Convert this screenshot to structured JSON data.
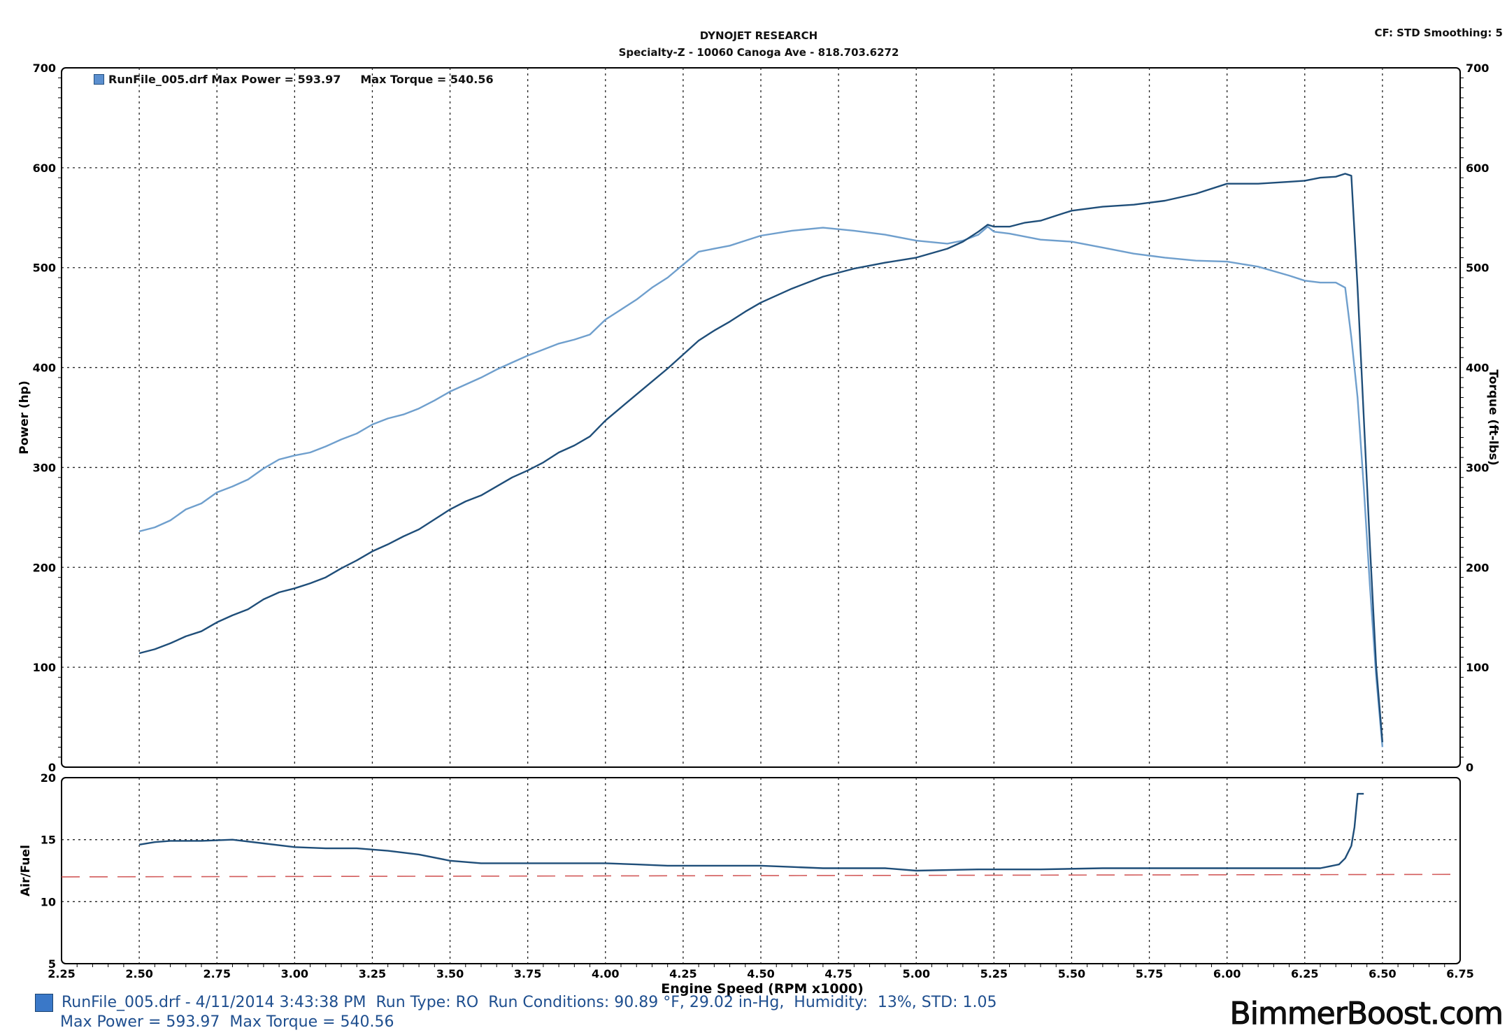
{
  "header": {
    "company": "DYNOJET RESEARCH",
    "shop": "Specialty-Z - 10060 Canoga Ave - 818.703.6272",
    "corner": "CF: STD  Smoothing: 5"
  },
  "legend": {
    "run": "RunFile_005.drf Max Power = 593.97",
    "torque": "Max Torque = 540.56"
  },
  "footer": {
    "line1": "RunFile_005.drf - 4/11/2014 3:43:38 PM  Run Type: RO  Run Conditions: 90.89 °F, 29.02 in-Hg,  Humidity:  13%, STD: 1.05",
    "line2": "Max Power = 593.97  Max Torque = 540.56"
  },
  "watermark": "BimmerBoost.com",
  "colors": {
    "power": "#1f4e79",
    "torque": "#6f9fcd",
    "afr": "#1f4e79",
    "afr_target": "#d25a5a",
    "grid": "#222222"
  },
  "chart_data": [
    {
      "type": "line",
      "xlabel": "Engine Speed (RPM x1000)",
      "ylabel": "Power (hp)",
      "y2label": "Torque (ft-lbs)",
      "xlim": [
        2.25,
        6.75
      ],
      "ylim": [
        0,
        700
      ],
      "y2lim": [
        0,
        700
      ],
      "x_ticks": [
        "2.25",
        "2.50",
        "2.75",
        "3.00",
        "3.25",
        "3.50",
        "3.75",
        "4.00",
        "4.25",
        "4.50",
        "4.75",
        "5.00",
        "5.25",
        "5.50",
        "5.75",
        "6.00",
        "6.25",
        "6.50",
        "6.75"
      ],
      "y_ticks": [
        "0",
        "100",
        "200",
        "300",
        "400",
        "500",
        "600",
        "700"
      ],
      "grid": true,
      "series": [
        {
          "name": "Power",
          "axis": "left",
          "x": [
            2.5,
            2.55,
            2.6,
            2.65,
            2.7,
            2.75,
            2.8,
            2.85,
            2.9,
            2.95,
            3.0,
            3.05,
            3.1,
            3.15,
            3.2,
            3.25,
            3.3,
            3.35,
            3.4,
            3.45,
            3.5,
            3.55,
            3.6,
            3.65,
            3.7,
            3.75,
            3.8,
            3.85,
            3.9,
            3.95,
            4.0,
            4.05,
            4.1,
            4.15,
            4.2,
            4.25,
            4.3,
            4.35,
            4.4,
            4.45,
            4.5,
            4.6,
            4.7,
            4.8,
            4.9,
            5.0,
            5.1,
            5.15,
            5.2,
            5.23,
            5.25,
            5.3,
            5.35,
            5.4,
            5.45,
            5.5,
            5.6,
            5.7,
            5.8,
            5.9,
            6.0,
            6.1,
            6.2,
            6.25,
            6.3,
            6.35,
            6.38,
            6.4,
            6.42,
            6.44,
            6.46,
            6.48,
            6.5
          ],
          "y": [
            114,
            118,
            124,
            131,
            136,
            145,
            152,
            158,
            168,
            175,
            179,
            184,
            190,
            199,
            207,
            216,
            223,
            231,
            238,
            248,
            258,
            266,
            272,
            281,
            290,
            297,
            305,
            315,
            322,
            331,
            347,
            360,
            373,
            386,
            399,
            413,
            427,
            437,
            446,
            456,
            465,
            479,
            491,
            499,
            505,
            510,
            519,
            526,
            536,
            543,
            541,
            541,
            545,
            547,
            552,
            557,
            561,
            563,
            567,
            574,
            584,
            584,
            586,
            587,
            590,
            591,
            594,
            592,
            480,
            350,
            220,
            100,
            25
          ]
        },
        {
          "name": "Torque",
          "axis": "right",
          "x": [
            2.5,
            2.55,
            2.6,
            2.65,
            2.7,
            2.75,
            2.8,
            2.85,
            2.9,
            2.95,
            3.0,
            3.05,
            3.1,
            3.15,
            3.2,
            3.25,
            3.3,
            3.35,
            3.4,
            3.45,
            3.5,
            3.55,
            3.6,
            3.65,
            3.7,
            3.75,
            3.8,
            3.85,
            3.9,
            3.95,
            4.0,
            4.05,
            4.1,
            4.15,
            4.2,
            4.25,
            4.3,
            4.35,
            4.4,
            4.45,
            4.5,
            4.6,
            4.7,
            4.8,
            4.9,
            5.0,
            5.1,
            5.15,
            5.2,
            5.23,
            5.25,
            5.3,
            5.4,
            5.5,
            5.6,
            5.7,
            5.8,
            5.9,
            6.0,
            6.1,
            6.2,
            6.25,
            6.3,
            6.35,
            6.38,
            6.4,
            6.42,
            6.44,
            6.46,
            6.48,
            6.5
          ],
          "y": [
            236,
            240,
            247,
            258,
            264,
            275,
            281,
            288,
            299,
            308,
            312,
            315,
            321,
            328,
            334,
            343,
            349,
            353,
            359,
            367,
            376,
            383,
            390,
            398,
            405,
            412,
            418,
            424,
            428,
            433,
            448,
            458,
            468,
            480,
            490,
            503,
            516,
            519,
            522,
            527,
            532,
            537,
            540,
            537,
            533,
            527,
            524,
            527,
            533,
            541,
            536,
            534,
            528,
            526,
            520,
            514,
            510,
            507,
            506,
            501,
            492,
            487,
            485,
            485,
            480,
            430,
            370,
            280,
            180,
            90,
            20
          ]
        }
      ]
    },
    {
      "type": "line",
      "xlabel": "Engine Speed (RPM x1000)",
      "ylabel": "Air/Fuel",
      "xlim": [
        2.25,
        6.75
      ],
      "ylim": [
        5,
        20
      ],
      "y_ticks": [
        "5",
        "10",
        "15",
        "20"
      ],
      "grid": true,
      "series": [
        {
          "name": "Air/Fuel",
          "x": [
            2.5,
            2.55,
            2.6,
            2.7,
            2.8,
            2.9,
            3.0,
            3.1,
            3.2,
            3.3,
            3.4,
            3.5,
            3.6,
            3.7,
            3.8,
            3.9,
            4.0,
            4.1,
            4.2,
            4.3,
            4.4,
            4.5,
            4.6,
            4.7,
            4.8,
            4.9,
            5.0,
            5.2,
            5.4,
            5.6,
            5.8,
            6.0,
            6.2,
            6.3,
            6.36,
            6.38,
            6.4,
            6.41,
            6.42,
            6.42,
            6.44
          ],
          "y": [
            14.6,
            14.8,
            14.9,
            14.9,
            15.0,
            14.7,
            14.4,
            14.3,
            14.3,
            14.1,
            13.8,
            13.3,
            13.1,
            13.1,
            13.1,
            13.1,
            13.1,
            13.0,
            12.9,
            12.9,
            12.9,
            12.9,
            12.8,
            12.7,
            12.7,
            12.7,
            12.5,
            12.6,
            12.6,
            12.7,
            12.7,
            12.7,
            12.7,
            12.7,
            13.0,
            13.5,
            14.5,
            16.0,
            18.6,
            18.7,
            18.7
          ]
        },
        {
          "name": "Target",
          "dashed": true,
          "x": [
            2.25,
            6.75
          ],
          "y": [
            12.0,
            12.2
          ]
        }
      ]
    }
  ]
}
